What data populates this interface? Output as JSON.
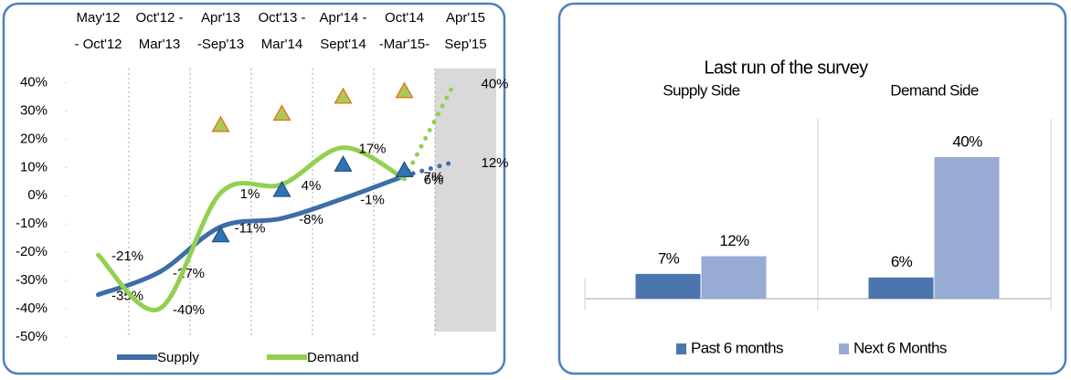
{
  "chart_data": [
    {
      "type": "line",
      "categories": [
        [
          "May'12",
          "- Oct'12"
        ],
        [
          "Oct'12 -",
          "Mar'13"
        ],
        [
          "Apr'13",
          "-Sep'13"
        ],
        [
          "Oct'13 -",
          "Mar'14"
        ],
        [
          "Apr'14 -",
          "Sept'14"
        ],
        [
          "Oct'14",
          "-Mar'15-"
        ],
        [
          "Apr'15",
          "Sep'15"
        ]
      ],
      "series": [
        {
          "name": "Supply",
          "color": "#3e6da8",
          "values": [
            -35,
            -27,
            -11,
            -8,
            -1,
            7,
            12
          ],
          "value_labels": [
            "-35%",
            "-27%",
            "-11%",
            "-8%",
            "-1%",
            "7%",
            "12%"
          ]
        },
        {
          "name": "Demand",
          "color": "#92d050",
          "values": [
            -21,
            -40,
            1,
            4,
            17,
            6,
            40
          ],
          "value_labels": [
            "-21%",
            "-40%",
            "1%",
            "4%",
            "17%",
            "6%",
            "40%"
          ]
        },
        {
          "type": "scatter",
          "marker": "triangle",
          "color": "#2e75b6",
          "edge_color": "#1f4e79",
          "values": [
            null,
            null,
            -14,
            2,
            11,
            9,
            null
          ]
        },
        {
          "type": "scatter",
          "marker": "triangle",
          "color": "#a9c95a",
          "edge_color": "#e46c0a",
          "values": [
            null,
            null,
            25,
            29,
            35,
            37,
            null
          ]
        }
      ],
      "ylim": [
        -50,
        45
      ],
      "yticks": [
        {
          "value": 40,
          "label": "40%"
        },
        {
          "value": 30,
          "label": "30%"
        },
        {
          "value": 20,
          "label": "20%"
        },
        {
          "value": 10,
          "label": "10%"
        },
        {
          "value": 0,
          "label": "0%"
        },
        {
          "value": -10,
          "label": "-10%"
        },
        {
          "value": -20,
          "label": "-20%"
        },
        {
          "value": -30,
          "label": "-30%"
        },
        {
          "value": -40,
          "label": "-40%"
        },
        {
          "value": -50,
          "label": "-50%"
        }
      ],
      "x_grid": true,
      "smooth": true,
      "dashed_last_segment": true,
      "shade_last_category": true,
      "legend": "bottom"
    },
    {
      "type": "bar",
      "title": "Last run of the survey",
      "categories": [
        "Supply Side",
        "Demand Side"
      ],
      "series": [
        {
          "name": "Past 6 months",
          "color": "#4a76ad",
          "values": [
            7,
            6
          ],
          "value_labels": [
            "7%",
            "6%"
          ]
        },
        {
          "name": "Next 6 Months",
          "color": "#97abd5",
          "values": [
            12,
            40
          ],
          "value_labels": [
            "12%",
            "40%"
          ]
        }
      ],
      "legend": "bottom"
    }
  ]
}
